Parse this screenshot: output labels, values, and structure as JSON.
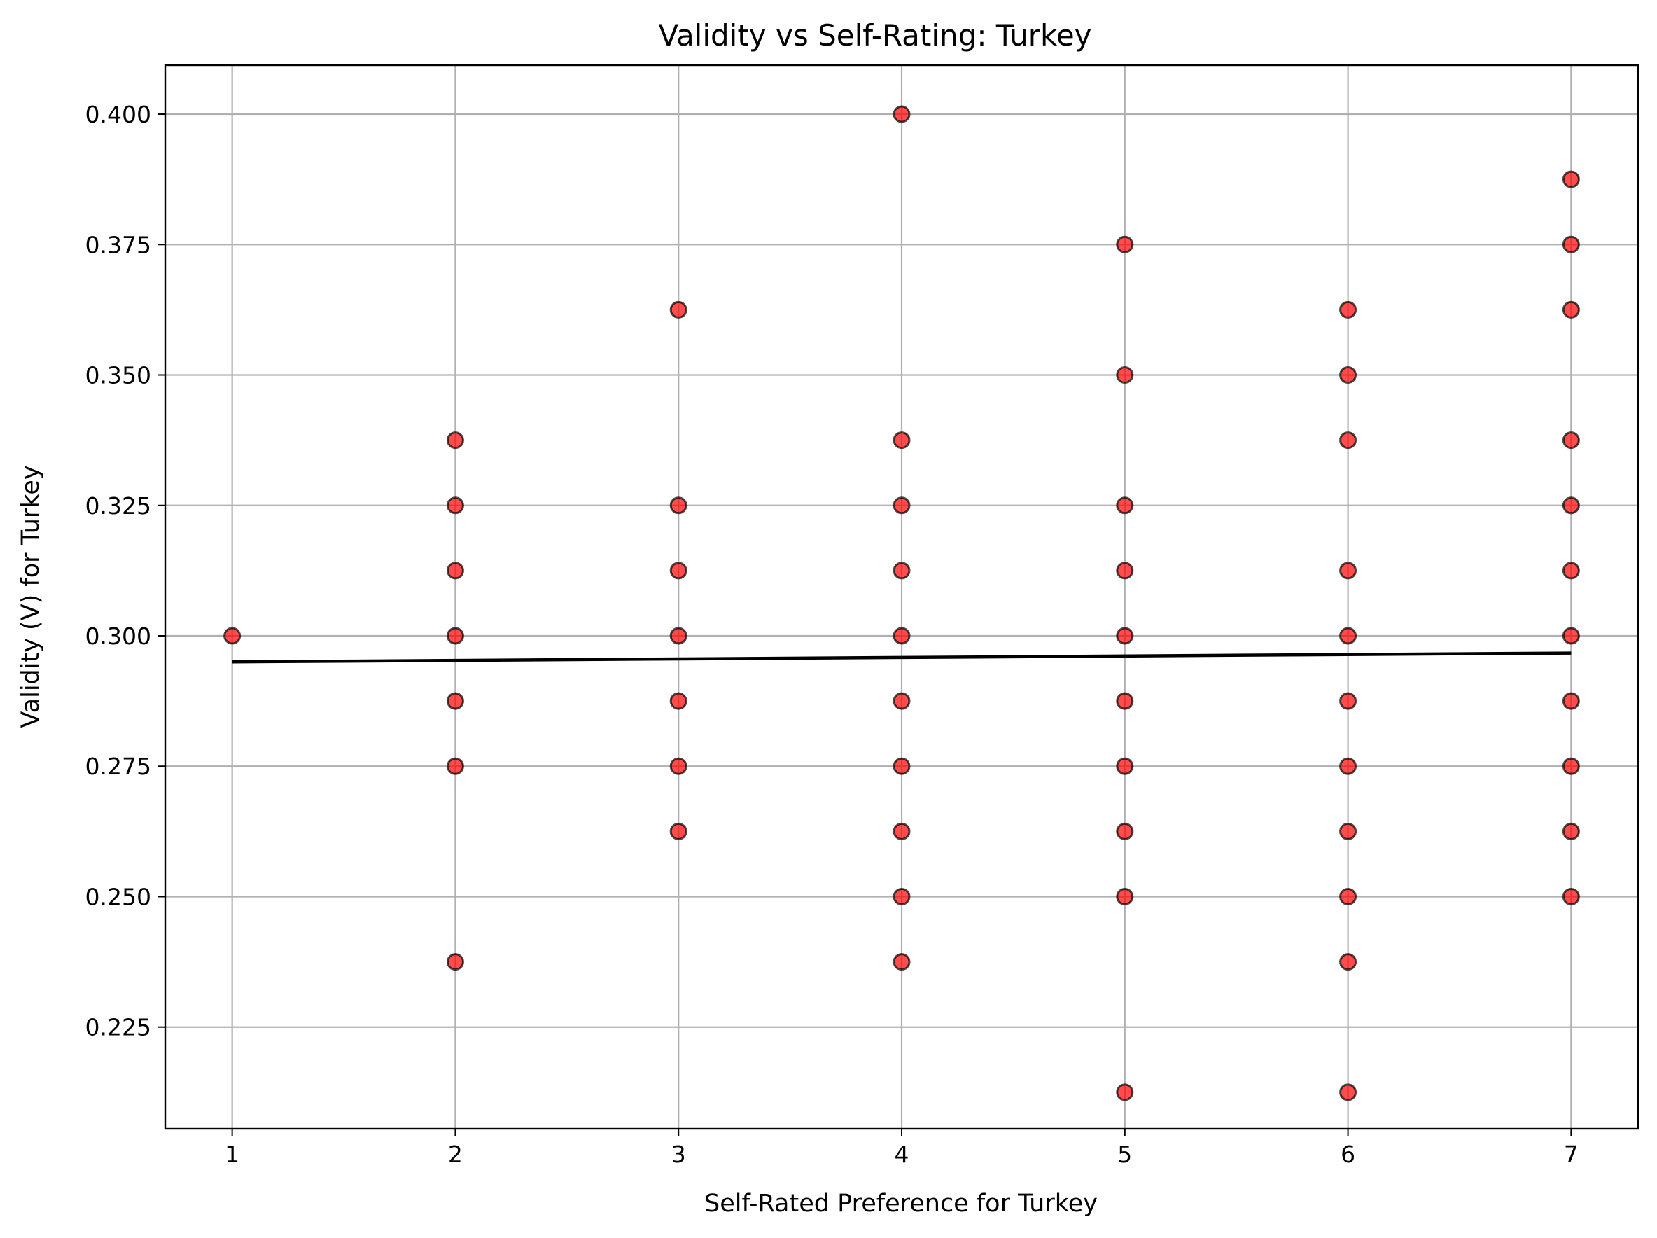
{
  "chart_data": {
    "type": "scatter",
    "title": "Validity vs Self-Rating: Turkey",
    "xlabel": "Self-Rated Preference for Turkey",
    "ylabel": "Validity (V) for Turkey",
    "xlim": [
      0.7,
      7.3
    ],
    "ylim": [
      0.2055,
      0.4094
    ],
    "xticks": [
      1,
      2,
      3,
      4,
      5,
      6,
      7
    ],
    "yticks": [
      0.225,
      0.25,
      0.275,
      0.3,
      0.325,
      0.35,
      0.375,
      0.4
    ],
    "ytick_labels": [
      "0.225",
      "0.250",
      "0.275",
      "0.300",
      "0.325",
      "0.350",
      "0.375",
      "0.400"
    ],
    "grid": true,
    "marker_color": "#ff0000",
    "trend_color": "#000000",
    "points": [
      {
        "x": 1,
        "y": 0.3
      },
      {
        "x": 2,
        "y": 0.3375
      },
      {
        "x": 2,
        "y": 0.325
      },
      {
        "x": 2,
        "y": 0.3125
      },
      {
        "x": 2,
        "y": 0.3
      },
      {
        "x": 2,
        "y": 0.2875
      },
      {
        "x": 2,
        "y": 0.275
      },
      {
        "x": 2,
        "y": 0.2375
      },
      {
        "x": 3,
        "y": 0.3625
      },
      {
        "x": 3,
        "y": 0.325
      },
      {
        "x": 3,
        "y": 0.3125
      },
      {
        "x": 3,
        "y": 0.3
      },
      {
        "x": 3,
        "y": 0.2875
      },
      {
        "x": 3,
        "y": 0.275
      },
      {
        "x": 3,
        "y": 0.2625
      },
      {
        "x": 4,
        "y": 0.4
      },
      {
        "x": 4,
        "y": 0.3375
      },
      {
        "x": 4,
        "y": 0.325
      },
      {
        "x": 4,
        "y": 0.3125
      },
      {
        "x": 4,
        "y": 0.3
      },
      {
        "x": 4,
        "y": 0.2875
      },
      {
        "x": 4,
        "y": 0.275
      },
      {
        "x": 4,
        "y": 0.2625
      },
      {
        "x": 4,
        "y": 0.25
      },
      {
        "x": 4,
        "y": 0.2375
      },
      {
        "x": 5,
        "y": 0.375
      },
      {
        "x": 5,
        "y": 0.35
      },
      {
        "x": 5,
        "y": 0.325
      },
      {
        "x": 5,
        "y": 0.3125
      },
      {
        "x": 5,
        "y": 0.3
      },
      {
        "x": 5,
        "y": 0.2875
      },
      {
        "x": 5,
        "y": 0.275
      },
      {
        "x": 5,
        "y": 0.2625
      },
      {
        "x": 5,
        "y": 0.25
      },
      {
        "x": 5,
        "y": 0.2125
      },
      {
        "x": 6,
        "y": 0.3625
      },
      {
        "x": 6,
        "y": 0.35
      },
      {
        "x": 6,
        "y": 0.3375
      },
      {
        "x": 6,
        "y": 0.3125
      },
      {
        "x": 6,
        "y": 0.3
      },
      {
        "x": 6,
        "y": 0.2875
      },
      {
        "x": 6,
        "y": 0.275
      },
      {
        "x": 6,
        "y": 0.2625
      },
      {
        "x": 6,
        "y": 0.25
      },
      {
        "x": 6,
        "y": 0.2375
      },
      {
        "x": 6,
        "y": 0.2125
      },
      {
        "x": 7,
        "y": 0.3875
      },
      {
        "x": 7,
        "y": 0.375
      },
      {
        "x": 7,
        "y": 0.3625
      },
      {
        "x": 7,
        "y": 0.3375
      },
      {
        "x": 7,
        "y": 0.325
      },
      {
        "x": 7,
        "y": 0.3125
      },
      {
        "x": 7,
        "y": 0.3
      },
      {
        "x": 7,
        "y": 0.2875
      },
      {
        "x": 7,
        "y": 0.275
      },
      {
        "x": 7,
        "y": 0.2625
      },
      {
        "x": 7,
        "y": 0.25
      }
    ],
    "trend_line": [
      {
        "x": 1,
        "y": 0.295
      },
      {
        "x": 7,
        "y": 0.2967
      }
    ]
  }
}
